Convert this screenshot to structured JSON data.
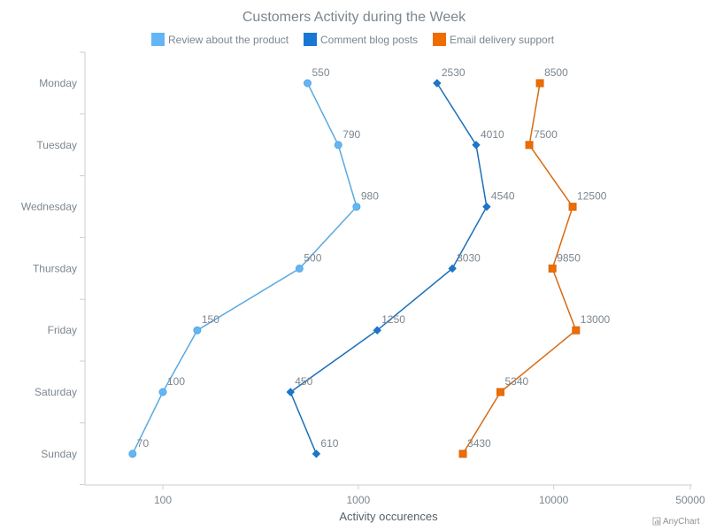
{
  "chart_data": {
    "type": "line",
    "orientation": "vertical",
    "title": "Customers Activity during the Week",
    "xlabel": "Activity occurences",
    "ylabel": "",
    "x_scale": "log",
    "x_ticks": [
      100,
      1000,
      10000,
      50000
    ],
    "x_tick_labels": [
      "100",
      "1000",
      "10000",
      "50000"
    ],
    "categories": [
      "Monday",
      "Tuesday",
      "Wednesday",
      "Thursday",
      "Friday",
      "Saturday",
      "Sunday"
    ],
    "legend_position": "top",
    "grid": false,
    "series": [
      {
        "name": "Review about the product",
        "color": "#64b5f6",
        "stroke_color": "#5aa9e0",
        "marker": "circle",
        "values": [
          550,
          790,
          980,
          500,
          150,
          100,
          70
        ]
      },
      {
        "name": "Comment blog posts",
        "color": "#1976d2",
        "stroke_color": "#1b6fb8",
        "marker": "diamond",
        "values": [
          2530,
          4010,
          4540,
          3030,
          1250,
          450,
          610
        ]
      },
      {
        "name": "Email delivery support",
        "color": "#ef6c00",
        "stroke_color": "#d86a12",
        "marker": "square",
        "values": [
          8500,
          7500,
          12500,
          9850,
          13000,
          5340,
          3430
        ]
      }
    ]
  },
  "credits": {
    "text": "AnyChart",
    "icon": "anychart-logo-icon"
  }
}
